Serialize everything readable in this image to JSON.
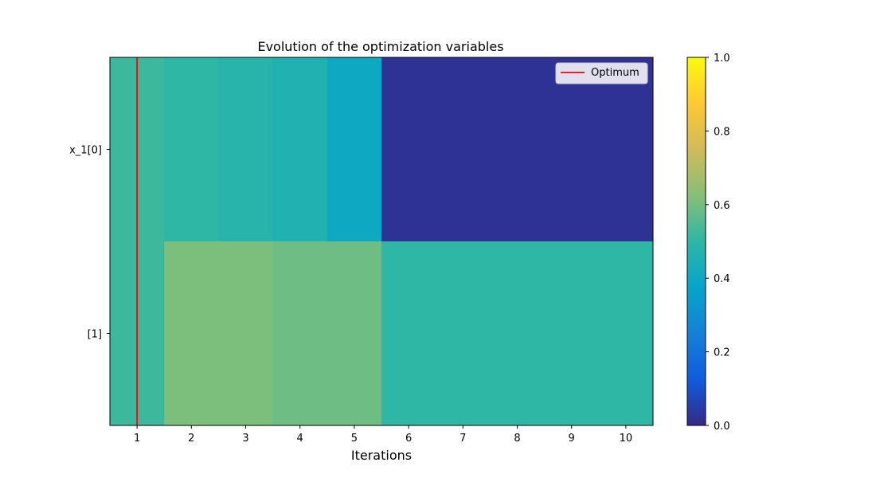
{
  "chart_data": {
    "type": "heatmap",
    "title": "Evolution of the optimization variables",
    "xlabel": "Iterations",
    "ylabel": "",
    "x": [
      1,
      2,
      3,
      4,
      5,
      6,
      7,
      8,
      9,
      10
    ],
    "xlim": [
      0.5,
      10.5
    ],
    "rows": [
      "x_1[0]",
      "[1]"
    ],
    "values": [
      [
        0.52,
        0.5,
        0.48,
        0.46,
        0.4,
        0.02,
        0.02,
        0.02,
        0.02,
        0.02
      ],
      [
        0.52,
        0.61,
        0.61,
        0.59,
        0.59,
        0.5,
        0.5,
        0.5,
        0.5,
        0.5
      ]
    ],
    "optimum_iteration": 1,
    "legend": {
      "label": "Optimum",
      "color": "#ff0000",
      "placement": "upper right"
    },
    "colorbar": {
      "min": 0.0,
      "max": 1.0,
      "ticks": [
        "0.0",
        "0.2",
        "0.4",
        "0.6",
        "0.8",
        "1.0"
      ]
    },
    "colormap": [
      "#352a87",
      "#0f5cdd",
      "#1481d6",
      "#06a4ca",
      "#2eb7a4",
      "#87bf77",
      "#d1bb59",
      "#fec832",
      "#f9fb0e"
    ]
  }
}
